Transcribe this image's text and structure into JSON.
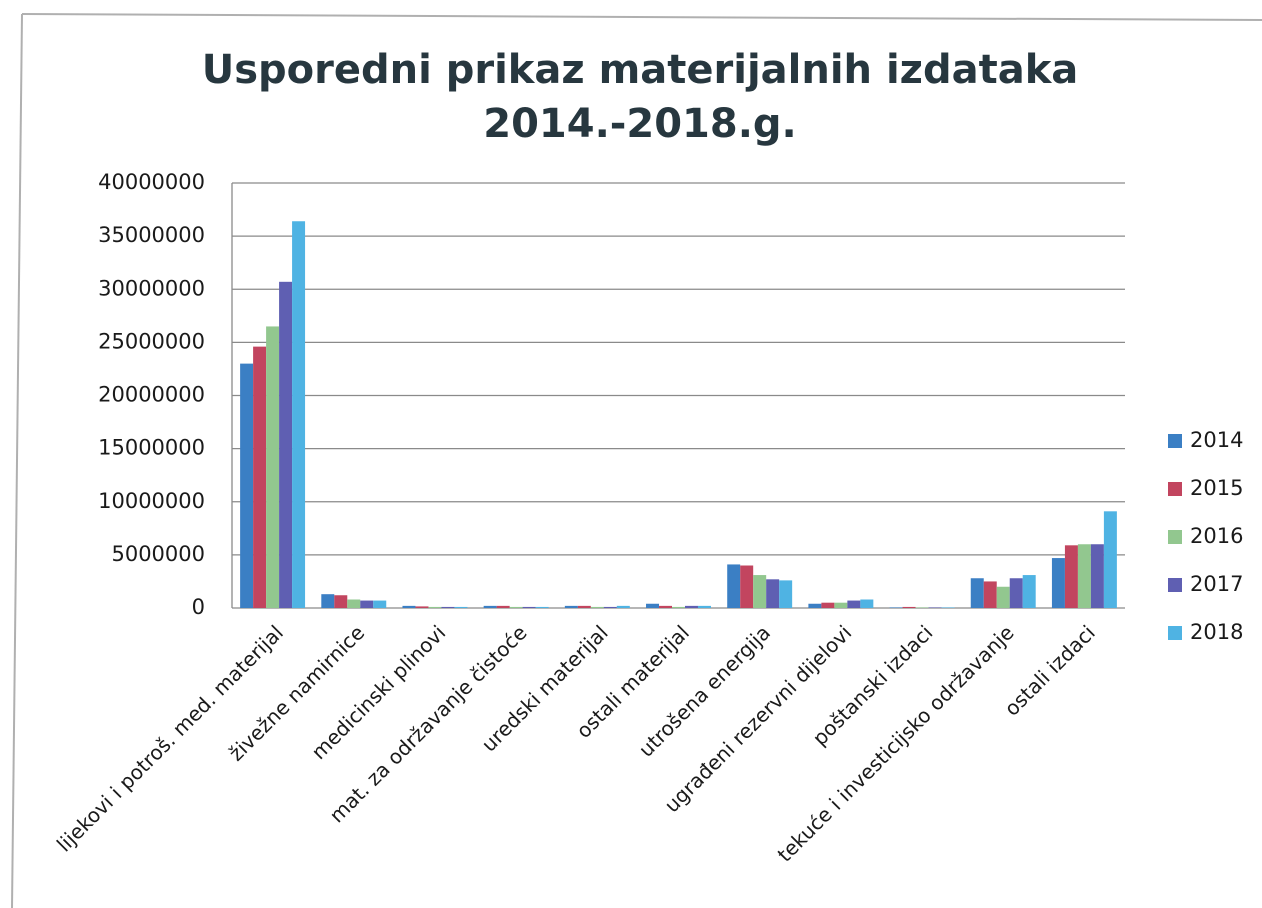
{
  "chart_data": {
    "type": "bar",
    "title": [
      "Usporedni prikaz materijalnih izdataka",
      "2014.-2018.g."
    ],
    "categories": [
      "lijekovi i potroš. med. materijal",
      "živežne namirnice",
      "medicinski plinovi",
      "mat. za održavanje čistoće",
      "uredski materijal",
      "ostali materijal",
      "utrošena energija",
      "ugrađeni rezervni dijelovi",
      "poštanski izdaci",
      "tekuće i investicijsko održavanje",
      "ostali izdaci"
    ],
    "series": [
      {
        "name": "2014",
        "color": "#3b7fc4",
        "values": [
          23000000,
          1300000,
          200000,
          200000,
          200000,
          400000,
          4100000,
          400000,
          50000,
          2800000,
          4700000
        ]
      },
      {
        "name": "2015",
        "color": "#c2455f",
        "values": [
          24600000,
          1200000,
          150000,
          200000,
          200000,
          200000,
          4000000,
          500000,
          100000,
          2500000,
          5900000
        ]
      },
      {
        "name": "2016",
        "color": "#92c78f",
        "values": [
          26500000,
          800000,
          100000,
          100000,
          100000,
          100000,
          3100000,
          500000,
          50000,
          2000000,
          6000000
        ]
      },
      {
        "name": "2017",
        "color": "#5f5fb2",
        "values": [
          30700000,
          700000,
          100000,
          100000,
          100000,
          200000,
          2700000,
          700000,
          50000,
          2800000,
          6000000
        ]
      },
      {
        "name": "2018",
        "color": "#4fb3e3",
        "values": [
          36400000,
          700000,
          100000,
          100000,
          200000,
          200000,
          2600000,
          800000,
          50000,
          3100000,
          9100000
        ]
      }
    ],
    "ylim": [
      0,
      40000000
    ],
    "yticks": [
      0,
      5000000,
      10000000,
      15000000,
      20000000,
      25000000,
      30000000,
      35000000,
      40000000
    ],
    "grid": true,
    "legend": "right"
  }
}
